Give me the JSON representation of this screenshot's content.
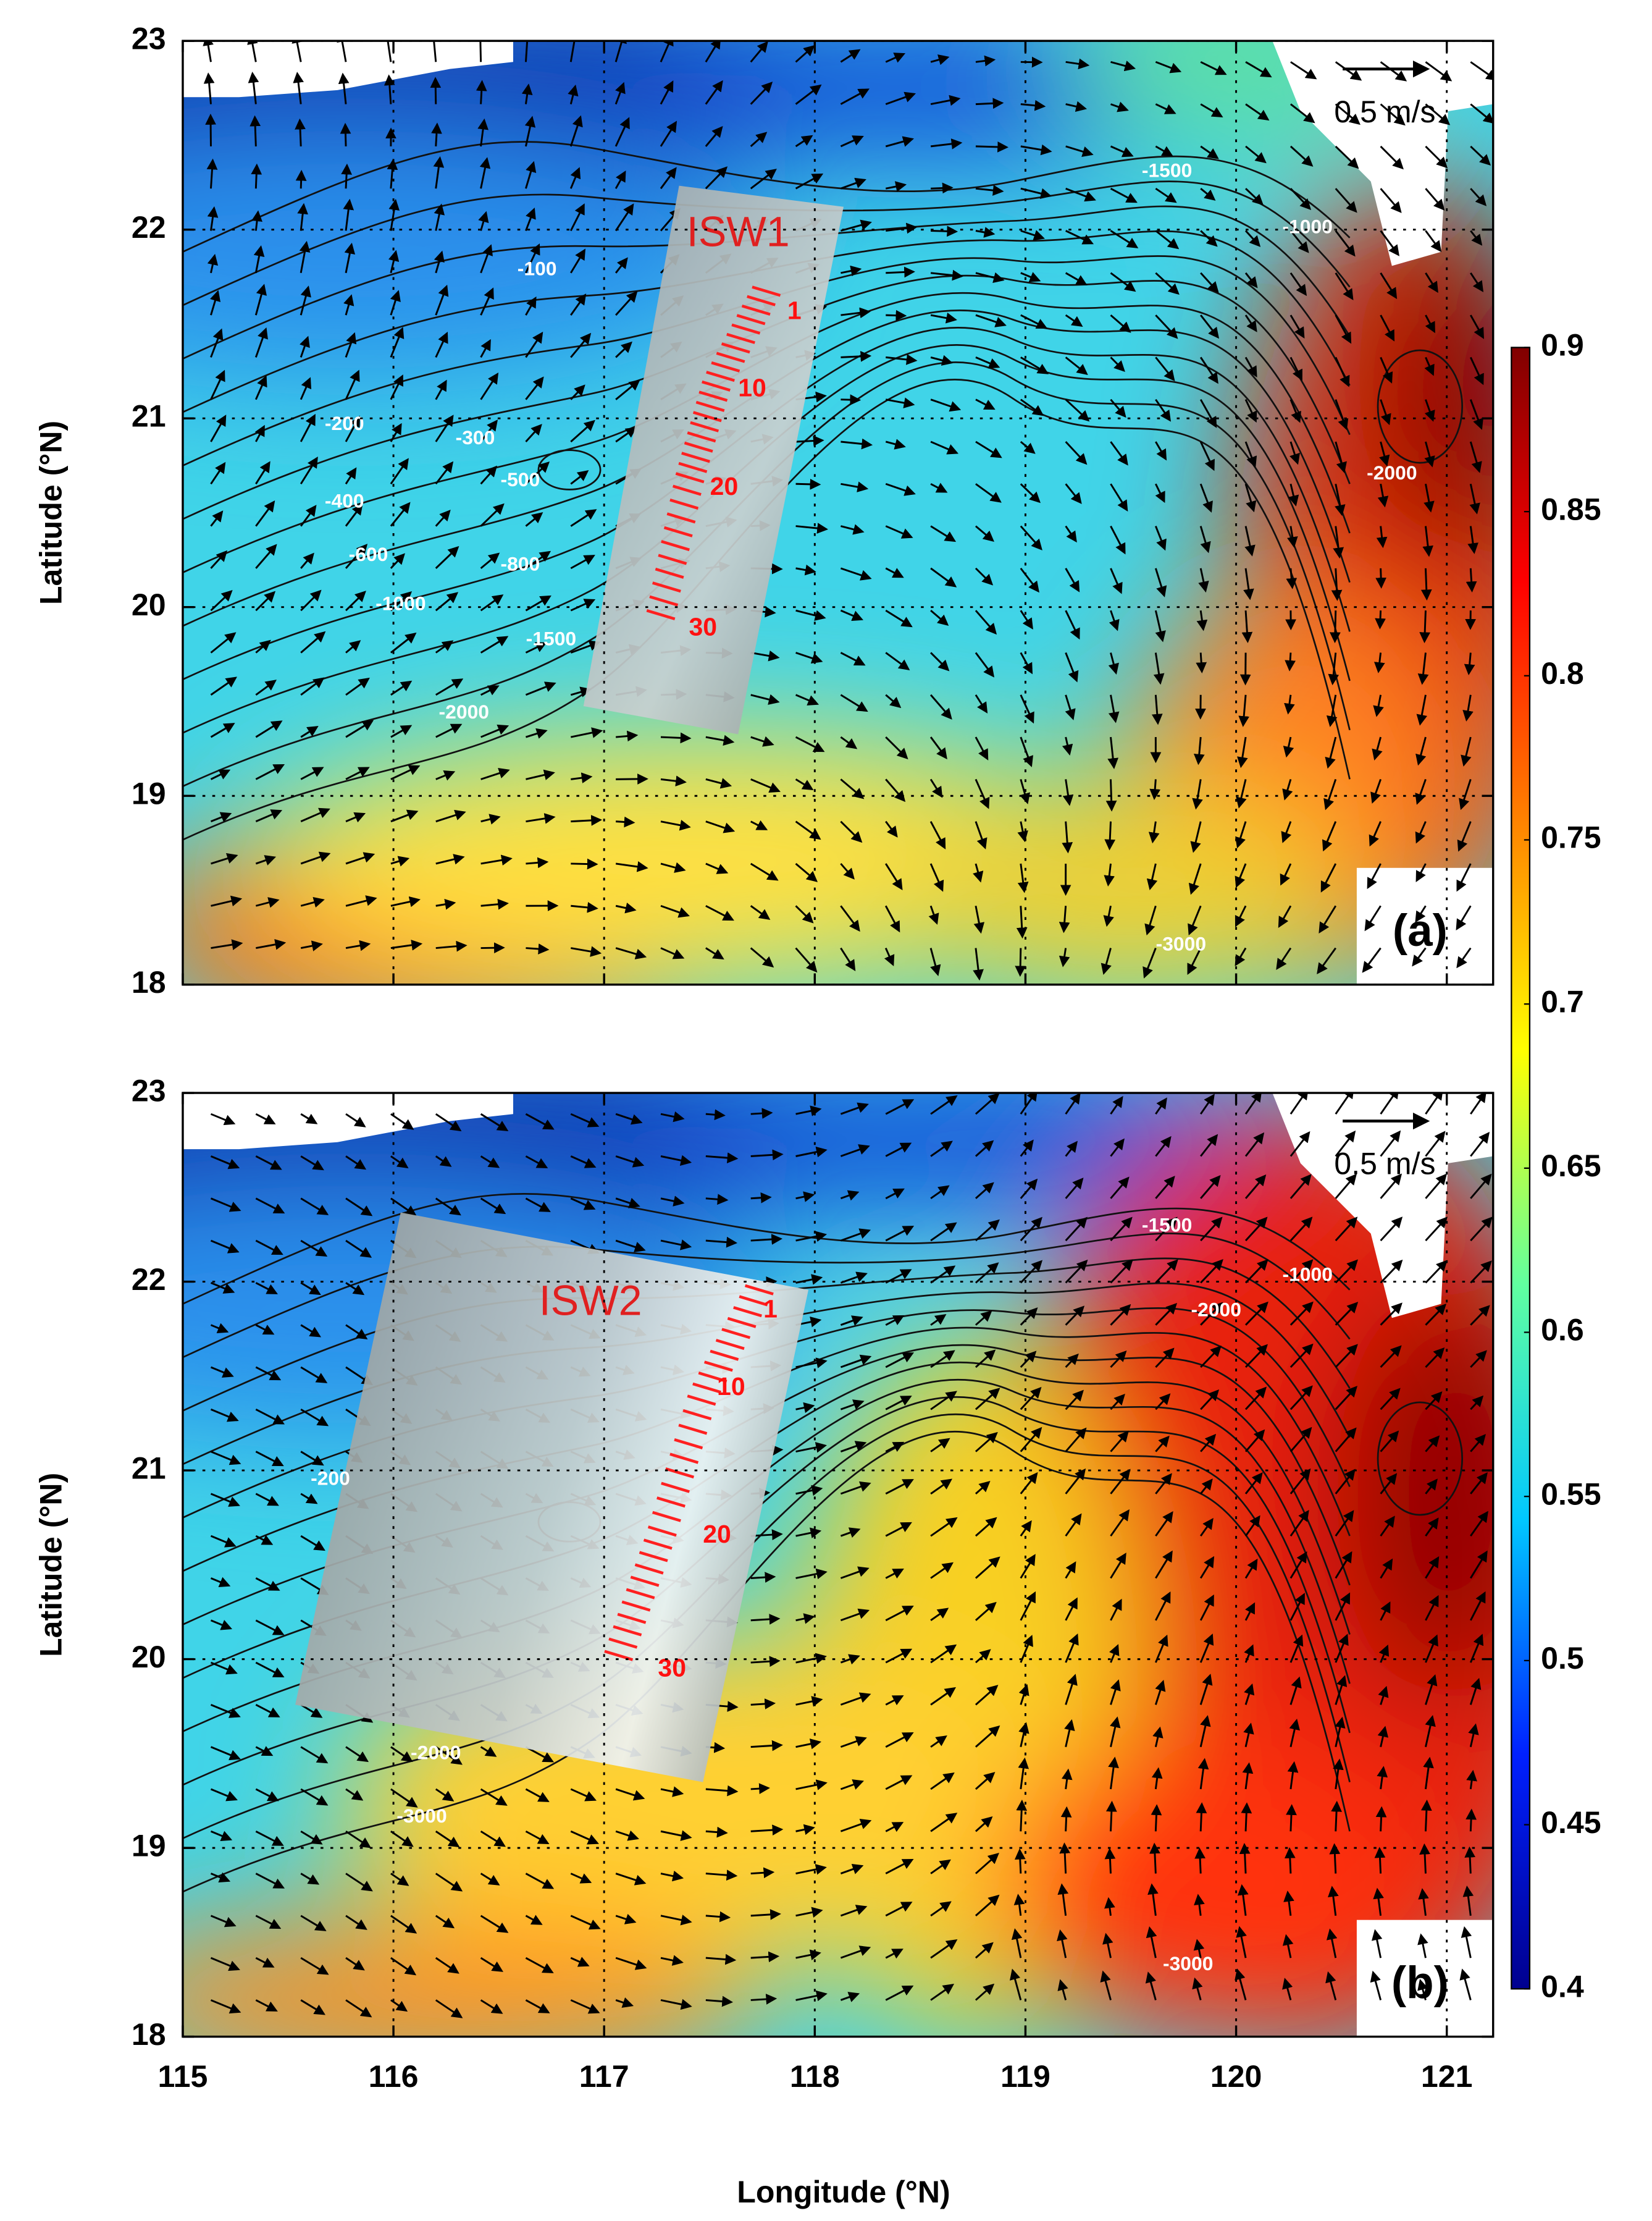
{
  "axes": {
    "xlabel": "Longitude (°N)",
    "ylabel": "Latitude (°N)",
    "xlim": [
      115,
      121.22
    ],
    "ylim": [
      18,
      23
    ],
    "xticks": [
      115,
      116,
      117,
      118,
      119,
      120,
      121
    ],
    "yticks": [
      18,
      19,
      20,
      21,
      22,
      23
    ]
  },
  "colorbar": {
    "clim": [
      0.4,
      0.9
    ],
    "ticks": [
      0.4,
      0.45,
      0.5,
      0.55,
      0.6,
      0.65,
      0.7,
      0.75,
      0.8,
      0.85,
      0.9
    ],
    "colormap": [
      "#00008f",
      "#0020ff",
      "#00c8ff",
      "#60ffa0",
      "#ffff00",
      "#ff8000",
      "#ff0000",
      "#800000"
    ]
  },
  "panels": [
    {
      "label": "(a)",
      "wave": "ISW1",
      "vector_scale": "0.5 m/s",
      "scale_labels": [
        "1",
        "10",
        "20",
        "30"
      ],
      "contour_labels": [
        "-100",
        "-200",
        "-300",
        "-400",
        "-500",
        "-600",
        "-800",
        "-1000",
        "-1500",
        "-2000",
        "-1500",
        "-1000",
        "-2000",
        "-3000"
      ]
    },
    {
      "label": "(b)",
      "wave": "ISW2",
      "vector_scale": "0.5 m/s",
      "scale_labels": [
        "1",
        "10",
        "20",
        "30"
      ],
      "contour_labels": [
        "-200",
        "-2000",
        "-3000",
        "-1500",
        "-1000",
        "-2000",
        "-3000"
      ]
    }
  ]
}
